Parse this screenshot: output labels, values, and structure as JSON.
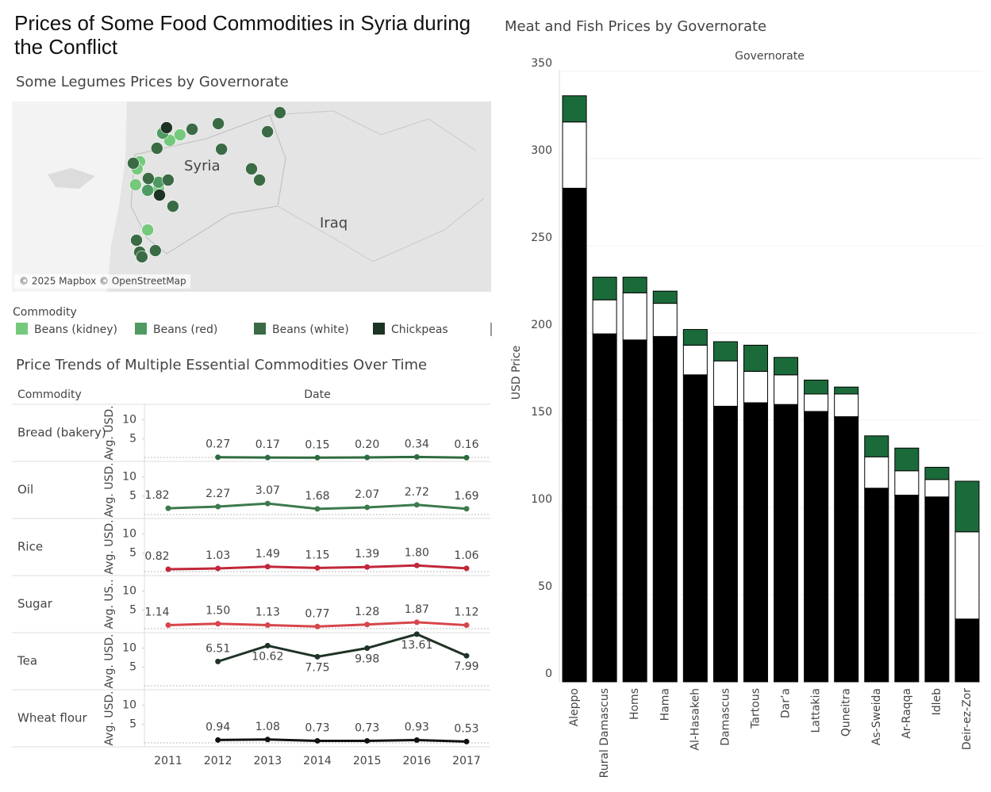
{
  "title": "Prices of Some Food Commodities in Syria during the Conflict",
  "chart_data": [
    {
      "type": "map",
      "title": "Some Legumes Prices by Governorate",
      "place_labels": [
        "Syria",
        "Iraq"
      ],
      "attribution": "© 2025 Mapbox © OpenStreetMap",
      "legend_title": "Commodity",
      "xlim": [
        33,
        48
      ],
      "ylim": [
        30,
        38.5
      ],
      "series": [
        {
          "name": "Beans (kidney)",
          "color": "#74c97c",
          "lon": [
            38.26,
            37.94,
            37.0,
            36.92,
            36.87,
            37.59,
            37.25
          ],
          "lat": [
            37.01,
            36.76,
            35.81,
            35.49,
            34.78,
            34.6,
            32.76
          ]
        },
        {
          "name": "Beans (red)",
          "color": "#4f9a62",
          "lon": [
            37.59,
            37.25,
            37.72
          ],
          "lat": [
            34.89,
            34.53,
            37.08
          ]
        },
        {
          "name": "Beans (white)",
          "color": "#3a6b45",
          "lon": [
            41.39,
            39.46,
            41.0,
            38.64,
            37.54,
            39.56,
            36.8,
            37.27,
            37.89,
            38.04,
            40.5,
            40.75,
            36.9,
            37.0,
            37.49,
            37.07
          ],
          "lat": [
            38.0,
            37.51,
            37.15,
            37.26,
            36.41,
            36.37,
            35.74,
            35.06,
            34.99,
            33.82,
            35.49,
            34.99,
            32.3,
            31.77,
            31.84,
            31.56
          ]
        },
        {
          "name": "Chickpeas",
          "color": "#1d3324",
          "lon": [
            37.84,
            37.62
          ],
          "lat": [
            37.33,
            34.32
          ]
        }
      ]
    },
    {
      "type": "line",
      "title": "Price Trends of Multiple Essential Commodities Over Time",
      "row_header": "Commodity",
      "xlabel": "Date",
      "categories": [
        "2011",
        "2012",
        "2013",
        "2014",
        "2015",
        "2016",
        "2017"
      ],
      "ylim": [
        0,
        14
      ],
      "yticks": [
        5,
        10
      ],
      "series": [
        {
          "name": "Bread (bakery)",
          "ylabel": "Avg. USD.",
          "color": "#2e6b3e",
          "values": [
            null,
            0.27,
            0.17,
            0.15,
            0.2,
            0.34,
            0.16
          ],
          "value_labels": [
            null,
            "0.27",
            "0.17",
            "0.15",
            "0.20",
            "0.34",
            "0.16"
          ]
        },
        {
          "name": "Oil",
          "ylabel": "Avg. USD.",
          "color": "#3d7a4d",
          "values": [
            1.82,
            2.27,
            3.07,
            1.68,
            2.07,
            2.72,
            1.69
          ],
          "value_labels": [
            "1.82",
            "2.27",
            "3.07",
            "1.68",
            "2.07",
            "2.72",
            "1.69"
          ]
        },
        {
          "name": "Rice",
          "ylabel": "Avg. USD.",
          "color": "#c0283a",
          "values": [
            0.82,
            1.03,
            1.49,
            1.15,
            1.39,
            1.8,
            1.06
          ],
          "value_labels": [
            "0.82",
            "1.03",
            "1.49",
            "1.15",
            "1.39",
            "1.80",
            "1.06"
          ]
        },
        {
          "name": "Sugar",
          "ylabel": "Avg. US..",
          "color": "#d6464b",
          "values": [
            1.14,
            1.5,
            1.13,
            0.77,
            1.28,
            1.87,
            1.12
          ],
          "value_labels": [
            "1.14",
            "1.50",
            "1.13",
            "0.77",
            "1.28",
            "1.87",
            "1.12"
          ]
        },
        {
          "name": "Tea",
          "ylabel": "Avg. USD.",
          "color": "#1f3326",
          "values": [
            null,
            6.51,
            10.62,
            7.75,
            9.98,
            13.61,
            7.99
          ],
          "value_labels": [
            null,
            "6.51",
            "10.62",
            "7.75",
            "9.98",
            "13.61",
            "7.99"
          ]
        },
        {
          "name": "Wheat flour",
          "ylabel": "Avg. USD.",
          "color": "#111111",
          "values": [
            null,
            0.94,
            1.08,
            0.73,
            0.73,
            0.93,
            0.53
          ],
          "value_labels": [
            null,
            "0.94",
            "1.08",
            "0.73",
            "0.73",
            "0.93",
            "0.53"
          ]
        }
      ]
    },
    {
      "type": "stacked_bar",
      "title": "Meat and Fish Prices by Governorate",
      "column_header": "Governorate",
      "ylabel": "USD Price",
      "categories": [
        "Aleppo",
        "Rural Damascus",
        "Homs",
        "Hama",
        "Al-Hasakeh",
        "Damascus",
        "Tartous",
        "Dar’a",
        "Lattakia",
        "Quneitra",
        "As-Sweida",
        "Ar-Raqqa",
        "Idleb",
        "Deir-ez-Zor"
      ],
      "ylim": [
        0,
        350
      ],
      "yticks": [
        0,
        50,
        100,
        150,
        200,
        250,
        300,
        350
      ],
      "grid": true,
      "series": [
        {
          "color": "#000000",
          "values": [
            283,
            199.5,
            196,
            198,
            176,
            158,
            160,
            159,
            155,
            152,
            111,
            107,
            106,
            36
          ]
        },
        {
          "color": "#ffffff",
          "values": [
            38,
            19.5,
            27,
            19,
            17,
            26,
            18,
            17,
            10,
            13,
            18,
            14,
            10,
            50
          ]
        },
        {
          "color": "#1b6b3a",
          "values": [
            15,
            13,
            9,
            7,
            9,
            11,
            15,
            10,
            8,
            4,
            12,
            13,
            7,
            29
          ]
        }
      ]
    }
  ]
}
